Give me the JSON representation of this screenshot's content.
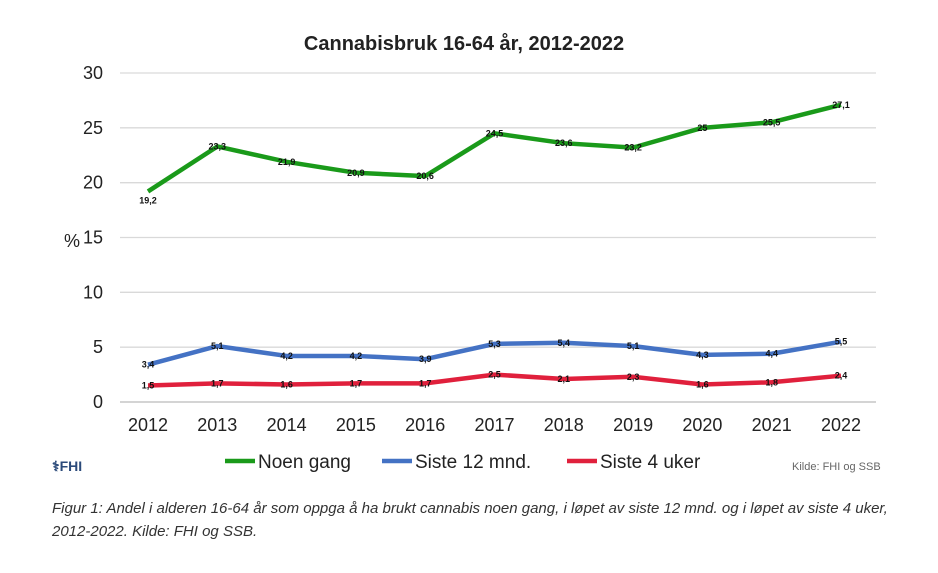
{
  "chart_data": {
    "type": "line",
    "title": "Cannabisbruk 16-64 år, 2012-2022",
    "ylabel": "%",
    "ylim": [
      0,
      30
    ],
    "yticks": [
      0,
      5,
      10,
      15,
      20,
      25,
      30
    ],
    "grid": true,
    "legend": "bottom",
    "categories": [
      "2012",
      "2013",
      "2014",
      "2015",
      "2016",
      "2017",
      "2018",
      "2019",
      "2020",
      "2021",
      "2022"
    ],
    "series": [
      {
        "name": "Noen gang",
        "color": "#1a9a1a",
        "values": [
          19.2,
          23.3,
          21.9,
          20.9,
          20.6,
          24.5,
          23.6,
          23.2,
          25,
          25.5,
          27.1
        ],
        "labels": [
          "19,2",
          "23,3",
          "21,9",
          "20,9",
          "20,6",
          "24,5",
          "23,6",
          "23,2",
          "25",
          "25,5",
          "27,1"
        ]
      },
      {
        "name": "Siste 12 mnd.",
        "color": "#4472c4",
        "values": [
          3.4,
          5.1,
          4.2,
          4.2,
          3.9,
          5.3,
          5.4,
          5.1,
          4.3,
          4.4,
          5.5
        ],
        "labels": [
          "3,4",
          "5,1",
          "4,2",
          "4,2",
          "3,9",
          "5,3",
          "5,4",
          "5,1",
          "4,3",
          "4,4",
          "5,5"
        ]
      },
      {
        "name": "Siste 4 uker",
        "color": "#e0203c",
        "values": [
          1.5,
          1.7,
          1.6,
          1.7,
          1.7,
          2.5,
          2.1,
          2.3,
          1.6,
          1.8,
          2.4
        ],
        "labels": [
          "1,5",
          "1,7",
          "1,6",
          "1,7",
          "1,7",
          "2,5",
          "2,1",
          "2,3",
          "1,6",
          "1,8",
          "2,4"
        ]
      }
    ]
  },
  "logo": "FHI",
  "source": "Kilde: FHI og SSB",
  "caption": "Figur 1: Andel i alderen 16-64 år som oppga å ha brukt cannabis noen gang, i løpet av siste 12 mnd. og i løpet av siste 4 uker, 2012-2022. Kilde: FHI og SSB."
}
